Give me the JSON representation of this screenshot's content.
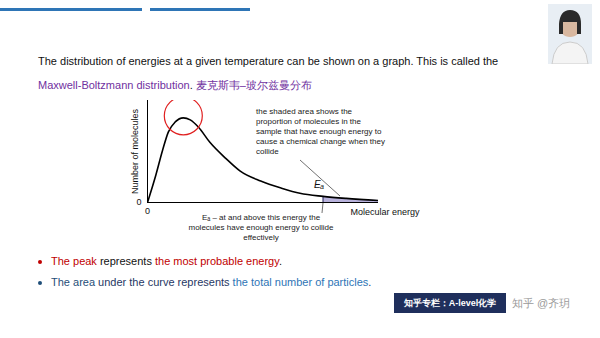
{
  "slide": {
    "intro": [
      {
        "text": "The distribution of energies at a given temperature can be shown on a graph. This is called the "
      },
      {
        "text": "Maxwell-Boltzmann distribution",
        "color": "#7030a0"
      },
      {
        "text": ". "
      },
      {
        "text": "麦克斯韦–玻尔兹曼分布",
        "color": "#7030a0"
      }
    ],
    "bullets": [
      {
        "bullet_color": "#c00000",
        "runs": [
          {
            "text": "The peak",
            "color": "#c00000"
          },
          {
            "text": " represents "
          },
          {
            "text": "the most probable energy",
            "color": "#c00000"
          },
          {
            "text": "."
          }
        ]
      },
      {
        "bullet_color": "#1f4e79",
        "runs": [
          {
            "text": "The area",
            "color": "#1f4e79"
          },
          {
            "text": " under the curve represents ",
            "color": "#1f3864"
          },
          {
            "text": "the total number of particles",
            "color": "#2e75b6"
          },
          {
            "text": ".",
            "color": "#1f3864"
          }
        ]
      }
    ],
    "footer": {
      "column": "知乎专栏：A-level化学",
      "watermark": "知乎 @齐玥"
    }
  },
  "chart_data": {
    "type": "line",
    "x_label": "Molecular energy",
    "y_label": "Number of molecules",
    "x": [
      0,
      0.35,
      0.65,
      0.9,
      1.2,
      1.55,
      1.85,
      2.2,
      2.7,
      3.4,
      4.0,
      4.9,
      5.8,
      6.6,
      7.6,
      8.6,
      10
    ],
    "values": [
      0,
      2.6,
      5.1,
      6.9,
      7.9,
      8.3,
      8.1,
      7.4,
      5.9,
      4.3,
      3.1,
      2.1,
      1.4,
      0.9,
      0.6,
      0.4,
      0.2
    ],
    "color": "#000000",
    "xlim": [
      0,
      10
    ],
    "ylim": [
      0,
      10
    ],
    "xticks": [
      0
    ],
    "yticks": [
      0
    ],
    "grid": false,
    "ea": 7.6,
    "annotations": {
      "ea_label": "Eₐ",
      "shaded_area": "the shaded area shows the proportion of molecules in the sample that have enough energy to cause a chemical change when they collide",
      "ea_note": "Eₐ – at and above this energy the molecules have enough energy to collide effectively"
    }
  }
}
